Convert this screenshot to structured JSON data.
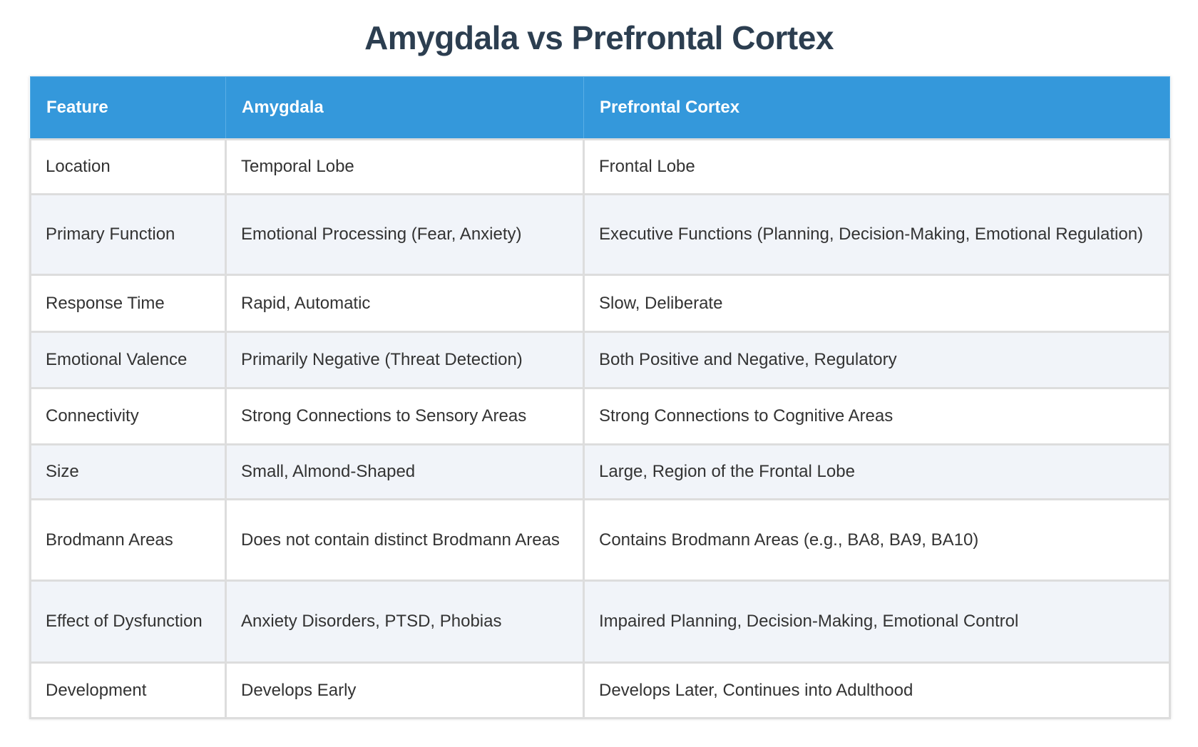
{
  "title": "Amygdala vs Prefrontal Cortex",
  "columns": [
    "Feature",
    "Amygdala",
    "Prefrontal Cortex"
  ],
  "rows": [
    [
      "Location",
      "Temporal Lobe",
      "Frontal Lobe"
    ],
    [
      "Primary Function",
      "Emotional Processing (Fear, Anxiety)",
      "Executive Functions (Planning, Decision-Making, Emotional Regulation)"
    ],
    [
      "Response Time",
      "Rapid, Automatic",
      "Slow, Deliberate"
    ],
    [
      "Emotional Valence",
      "Primarily Negative (Threat Detection)",
      "Both Positive and Negative, Regulatory"
    ],
    [
      "Connectivity",
      "Strong Connections to Sensory Areas",
      "Strong Connections to Cognitive Areas"
    ],
    [
      "Size",
      "Small, Almond-Shaped",
      "Large, Region of the Frontal Lobe"
    ],
    [
      "Brodmann Areas",
      "Does not contain distinct Brodmann Areas",
      "Contains Brodmann Areas (e.g., BA8, BA9, BA10)"
    ],
    [
      "Effect of Dysfunction",
      "Anxiety Disorders, PTSD, Phobias",
      "Impaired Planning, Decision-Making, Emotional Control"
    ],
    [
      "Development",
      "Develops Early",
      "Develops Later, Continues into Adulthood"
    ]
  ],
  "colors": {
    "header": "#3498db",
    "title": "#2c3e50",
    "stripe": "#f1f4f9"
  }
}
